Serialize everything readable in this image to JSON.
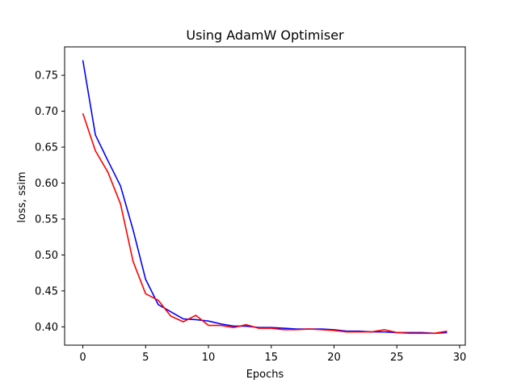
{
  "chart_data": {
    "type": "line",
    "title": "Using AdamW Optimiser",
    "xlabel": "Epochs",
    "ylabel": "loss, ssim",
    "xlim": [
      -1.45,
      30.45
    ],
    "ylim": [
      0.3745,
      0.7895
    ],
    "xticks": [
      0,
      5,
      10,
      15,
      20,
      25,
      30
    ],
    "xtick_labels": [
      "0",
      "5",
      "10",
      "15",
      "20",
      "25",
      "30"
    ],
    "yticks": [
      0.4,
      0.45,
      0.5,
      0.55,
      0.6,
      0.65,
      0.7,
      0.75
    ],
    "ytick_labels": [
      "0.40",
      "0.45",
      "0.50",
      "0.55",
      "0.60",
      "0.65",
      "0.70",
      "0.75"
    ],
    "grid": false,
    "x": [
      0,
      1,
      2,
      3,
      4,
      5,
      6,
      7,
      8,
      9,
      10,
      11,
      12,
      13,
      14,
      15,
      16,
      17,
      18,
      19,
      20,
      21,
      22,
      23,
      24,
      25,
      26,
      27,
      28,
      29
    ],
    "series": [
      {
        "color": "#0000ff",
        "values": [
          0.771,
          0.667,
          0.631,
          0.596,
          0.535,
          0.466,
          0.431,
          0.421,
          0.411,
          0.41,
          0.408,
          0.404,
          0.401,
          0.401,
          0.399,
          0.399,
          0.398,
          0.397,
          0.397,
          0.397,
          0.396,
          0.394,
          0.394,
          0.393,
          0.393,
          0.392,
          0.392,
          0.392,
          0.391,
          0.392
        ]
      },
      {
        "color": "#ff0000",
        "values": [
          0.697,
          0.645,
          0.615,
          0.571,
          0.491,
          0.446,
          0.437,
          0.415,
          0.407,
          0.416,
          0.402,
          0.402,
          0.399,
          0.403,
          0.398,
          0.398,
          0.396,
          0.396,
          0.397,
          0.396,
          0.395,
          0.393,
          0.393,
          0.393,
          0.396,
          0.392,
          0.391,
          0.391,
          0.391,
          0.394
        ]
      }
    ]
  }
}
